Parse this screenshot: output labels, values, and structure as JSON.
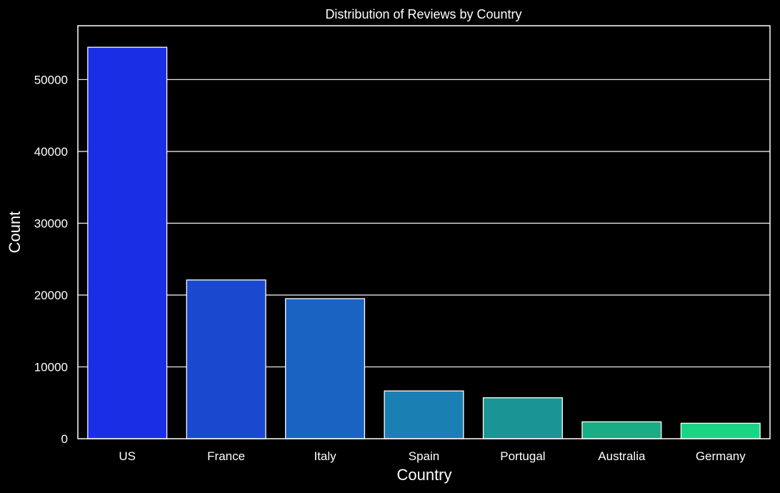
{
  "chart_data": {
    "type": "bar",
    "title": "Distribution of Reviews by Country",
    "xlabel": "Country",
    "ylabel": "Count",
    "categories": [
      "US",
      "France",
      "Italy",
      "Spain",
      "Portugal",
      "Australia",
      "Germany"
    ],
    "values": [
      54500,
      22100,
      19500,
      6650,
      5700,
      2350,
      2150
    ],
    "ylim": [
      0,
      57500
    ],
    "yticks": [
      0,
      10000,
      20000,
      30000,
      40000,
      50000
    ],
    "ytick_labels": [
      "0",
      "10000",
      "20000",
      "30000",
      "40000",
      "50000"
    ],
    "grid": "horizontal",
    "colors": [
      "#1a2ee6",
      "#1a49d0",
      "#1a63c2",
      "#1a7fb2",
      "#1a9494",
      "#1aad84",
      "#1ad484"
    ],
    "background": "#000000",
    "foreground": "#ffffff"
  }
}
